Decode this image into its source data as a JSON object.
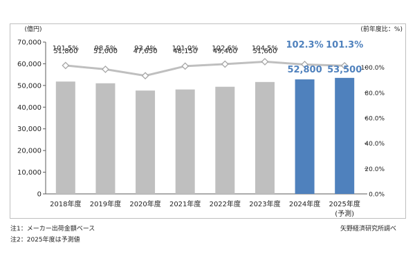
{
  "chart_data": {
    "type": "bar+line",
    "categories": [
      "2018年度",
      "2019年度",
      "2020年度",
      "2021年度",
      "2022年度",
      "2023年度",
      "2024年度",
      "2025年度"
    ],
    "category_sublabels": [
      "",
      "",
      "",
      "",
      "",
      "",
      "",
      "(予測)"
    ],
    "series": [
      {
        "axis": "left",
        "type": "bar",
        "values": [
          51800,
          51000,
          47650,
          48150,
          49400,
          51600,
          52800,
          53500
        ],
        "value_labels": [
          "51,800",
          "51,000",
          "47,650",
          "48,150",
          "49,400",
          "51,600",
          "52,800",
          "53,500"
        ],
        "colors": [
          "#bfbfbf",
          "#bfbfbf",
          "#bfbfbf",
          "#bfbfbf",
          "#bfbfbf",
          "#bfbfbf",
          "#4f81bd",
          "#4f81bd"
        ]
      },
      {
        "axis": "right",
        "type": "line",
        "values": [
          101.5,
          98.5,
          93.4,
          101.0,
          102.6,
          104.5,
          102.3,
          101.3
        ],
        "value_labels": [
          "101.5%",
          "98.5%",
          "93.4%",
          "101.0%",
          "102.6%",
          "104.5%",
          "102.3%",
          "101.3%"
        ],
        "color": "#bfbfbf"
      }
    ],
    "y_left": {
      "label": "(億円)",
      "ylim": [
        0,
        70000
      ],
      "ticks": [
        "0",
        "10,000",
        "20,000",
        "30,000",
        "40,000",
        "50,000",
        "60,000",
        "70,000"
      ]
    },
    "y_right": {
      "label": "(前年度比：%)",
      "ylim": [
        0,
        120
      ],
      "ticks": [
        "0.0%",
        "20.0%",
        "40.0%",
        "60.0%",
        "80.0%",
        "100.0%"
      ],
      "tick_values": [
        0,
        20,
        40,
        60,
        80,
        100
      ]
    },
    "grid": false,
    "highlight_color": "#4f81bd"
  },
  "notes": [
    "注1：メーカー出荷金額ベース",
    "注2：2025年度は予測値"
  ],
  "source": "矢野経済研究所調べ"
}
